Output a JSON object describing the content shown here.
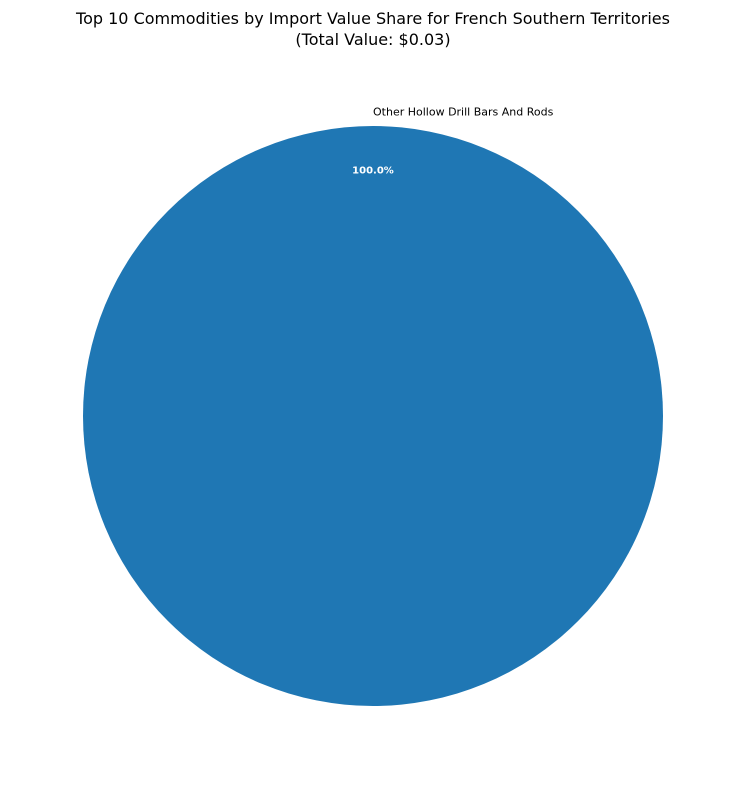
{
  "chart_data": {
    "type": "pie",
    "title": "Top 10 Commodities by Import Value Share for French Southern Territories",
    "subtitle": "(Total Value: $0.03)",
    "slices": [
      {
        "label": "Other Hollow Drill Bars And Rods",
        "value": 100.0,
        "percent_label": "100.0%",
        "color": "#1f77b4"
      }
    ]
  }
}
